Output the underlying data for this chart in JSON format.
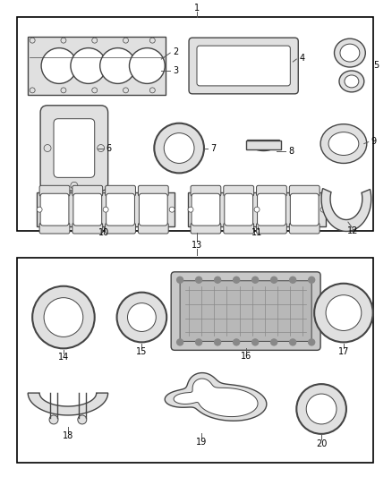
{
  "bg_color": "#ffffff",
  "border_color": "#000000",
  "lc": "#444444",
  "lw": 1.0,
  "fig_width": 4.38,
  "fig_height": 5.33
}
